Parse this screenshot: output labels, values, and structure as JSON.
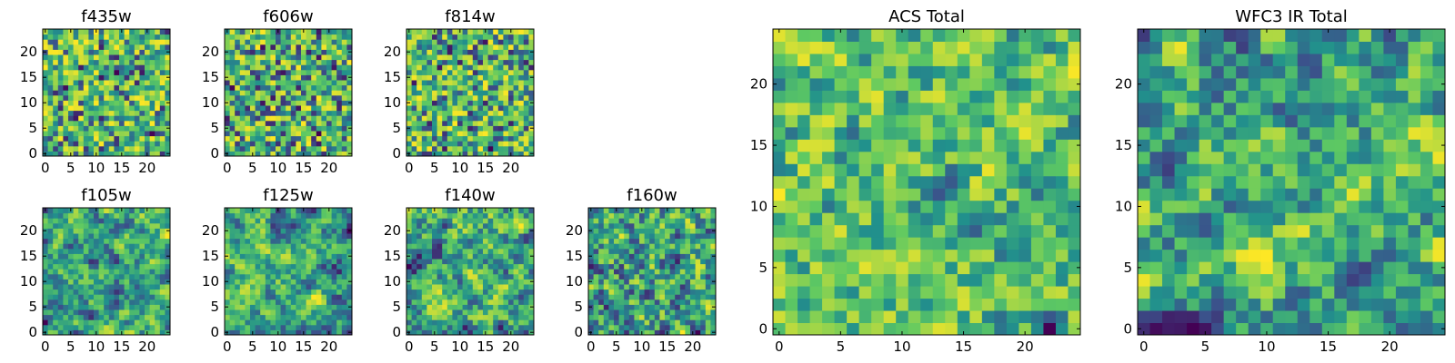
{
  "chart_data": [
    {
      "type": "heatmap",
      "title": "f435w",
      "xticks": [
        0,
        5,
        10,
        15,
        20
      ],
      "yticks": [
        0,
        5,
        10,
        15,
        20
      ],
      "xlim": [
        0,
        25
      ],
      "ylim": [
        0,
        25
      ],
      "grid": false
    },
    {
      "type": "heatmap",
      "title": "f606w",
      "xticks": [
        0,
        5,
        10,
        15,
        20
      ],
      "yticks": [
        0,
        5,
        10,
        15,
        20
      ],
      "xlim": [
        0,
        25
      ],
      "ylim": [
        0,
        25
      ],
      "grid": false
    },
    {
      "type": "heatmap",
      "title": "f814w",
      "xticks": [
        0,
        5,
        10,
        15,
        20
      ],
      "yticks": [
        0,
        5,
        10,
        15,
        20
      ],
      "xlim": [
        0,
        25
      ],
      "ylim": [
        0,
        25
      ],
      "grid": false
    },
    {
      "type": "heatmap",
      "title": "f105w",
      "xticks": [
        0,
        5,
        10,
        15,
        20
      ],
      "yticks": [
        0,
        5,
        10,
        15,
        20
      ],
      "xlim": [
        0,
        25
      ],
      "ylim": [
        0,
        25
      ],
      "grid": false
    },
    {
      "type": "heatmap",
      "title": "f125w",
      "xticks": [
        0,
        5,
        10,
        15,
        20
      ],
      "yticks": [
        0,
        5,
        10,
        15,
        20
      ],
      "xlim": [
        0,
        25
      ],
      "ylim": [
        0,
        25
      ],
      "grid": false
    },
    {
      "type": "heatmap",
      "title": "f140w",
      "xticks": [
        0,
        5,
        10,
        15,
        20
      ],
      "yticks": [
        0,
        5,
        10,
        15,
        20
      ],
      "xlim": [
        0,
        25
      ],
      "ylim": [
        0,
        25
      ],
      "grid": false
    },
    {
      "type": "heatmap",
      "title": "f160w",
      "xticks": [
        0,
        5,
        10,
        15,
        20
      ],
      "yticks": [
        0,
        5,
        10,
        15,
        20
      ],
      "xlim": [
        0,
        25
      ],
      "ylim": [
        0,
        25
      ],
      "grid": false
    },
    {
      "type": "heatmap",
      "title": "ACS Total",
      "xticks": [
        0,
        5,
        10,
        15,
        20
      ],
      "yticks": [
        0,
        5,
        10,
        15,
        20
      ],
      "xlim": [
        0,
        25
      ],
      "ylim": [
        0,
        25
      ],
      "grid": false
    },
    {
      "type": "heatmap",
      "title": "WFC3 IR Total",
      "xticks": [
        0,
        5,
        10,
        15,
        20
      ],
      "yticks": [
        0,
        5,
        10,
        15,
        20
      ],
      "xlim": [
        0,
        25
      ],
      "ylim": [
        0,
        25
      ],
      "grid": false
    }
  ],
  "colormap": [
    "#440154",
    "#3b528b",
    "#21918c",
    "#5ec962",
    "#fde725"
  ]
}
